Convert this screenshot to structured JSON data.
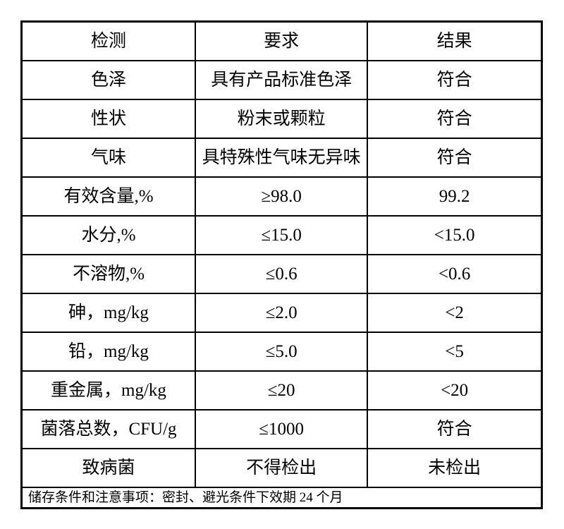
{
  "colors": {
    "background": "#ffffff",
    "border": "#000000",
    "text": "#000000"
  },
  "table": {
    "columns": [
      "检测",
      "要求",
      "结果"
    ],
    "rows": [
      {
        "test": "色泽",
        "requirement": "具有产品标准色泽",
        "result": "符合"
      },
      {
        "test": "性状",
        "requirement": "粉末或颗粒",
        "result": "符合"
      },
      {
        "test": "气味",
        "requirement": "具特殊性气味无异味",
        "result": "符合"
      },
      {
        "test": "有效含量,%",
        "requirement": "≥98.0",
        "result": "99.2"
      },
      {
        "test": "水分,%",
        "requirement": "≤15.0",
        "result": "<15.0"
      },
      {
        "test": "不溶物,%",
        "requirement": "≤0.6",
        "result": "<0.6"
      },
      {
        "test": "砷，mg/kg",
        "requirement": "≤2.0",
        "result": "<2"
      },
      {
        "test": "铅，mg/kg",
        "requirement": "≤5.0",
        "result": "<5"
      },
      {
        "test": "重金属，mg/kg",
        "requirement": "≤20",
        "result": "<20"
      },
      {
        "test": "菌落总数，CFU/g",
        "requirement": "≤1000",
        "result": "符合"
      },
      {
        "test": "致病菌",
        "requirement": "不得检出",
        "result": "未检出"
      }
    ],
    "footer": "储存条件和注意事项：密封、避光条件下效期 24 个月"
  }
}
